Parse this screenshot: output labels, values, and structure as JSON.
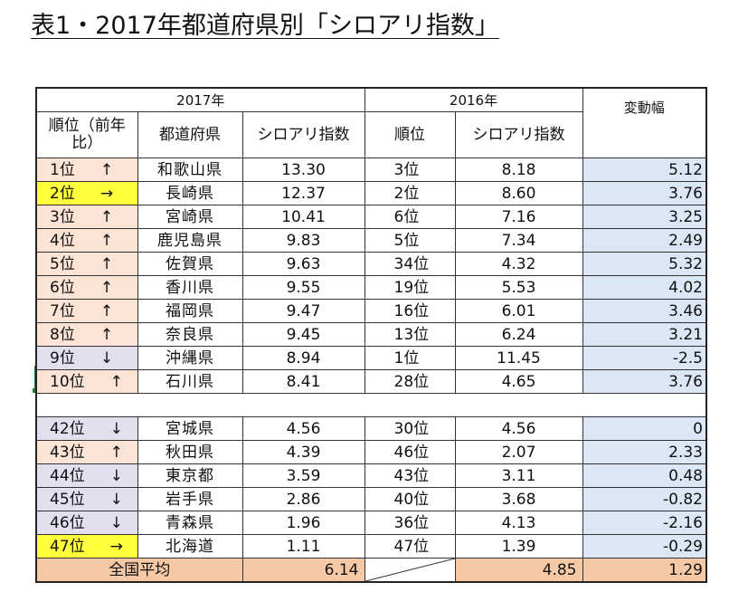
{
  "title": "表1・2017年都道府県別「シロアリ指数」",
  "headers": {
    "year_2017": "2017年",
    "year_2016": "2016年",
    "rank_prev": "順位（前年比）",
    "prefecture": "都道府県",
    "index_2017": "シロアリ指数",
    "rank_2016": "順位",
    "index_2016": "シロアリ指数",
    "change": "変動幅"
  },
  "top_rows": [
    {
      "rank": "1位",
      "trend": "↑",
      "pref": "和歌山県",
      "idx17": "13.30",
      "rank16": "3位",
      "idx16": "8.18",
      "change": "5.12",
      "color": "#fbe4d5"
    },
    {
      "rank": "2位",
      "trend": "→",
      "pref": "長崎県",
      "idx17": "12.37",
      "rank16": "2位",
      "idx16": "8.60",
      "change": "3.76",
      "color": "#ffff3b"
    },
    {
      "rank": "3位",
      "trend": "↑",
      "pref": "宮崎県",
      "idx17": "10.41",
      "rank16": "6位",
      "idx16": "7.16",
      "change": "3.25",
      "color": "#fbe4d5"
    },
    {
      "rank": "4位",
      "trend": "↑",
      "pref": "鹿児島県",
      "idx17": "9.83",
      "rank16": "5位",
      "idx16": "7.34",
      "change": "2.49",
      "color": "#fbe4d5"
    },
    {
      "rank": "5位",
      "trend": "↑",
      "pref": "佐賀県",
      "idx17": "9.63",
      "rank16": "34位",
      "idx16": "4.32",
      "change": "5.32",
      "color": "#fbe4d5"
    },
    {
      "rank": "6位",
      "trend": "↑",
      "pref": "香川県",
      "idx17": "9.55",
      "rank16": "19位",
      "idx16": "5.53",
      "change": "4.02",
      "color": "#fbe4d5"
    },
    {
      "rank": "7位",
      "trend": "↑",
      "pref": "福岡県",
      "idx17": "9.47",
      "rank16": "16位",
      "idx16": "6.01",
      "change": "3.46",
      "color": "#fbe4d5"
    },
    {
      "rank": "8位",
      "trend": "↑",
      "pref": "奈良県",
      "idx17": "9.45",
      "rank16": "13位",
      "idx16": "6.24",
      "change": "3.21",
      "color": "#fbe4d5"
    },
    {
      "rank": "9位",
      "trend": "↓",
      "pref": "沖縄県",
      "idx17": "8.94",
      "rank16": "1位",
      "idx16": "11.45",
      "change": "-2.5",
      "color": "#e2dfef"
    },
    {
      "rank": "10位",
      "trend": "↑",
      "pref": "石川県",
      "idx17": "8.41",
      "rank16": "28位",
      "idx16": "4.65",
      "change": "3.76",
      "color": "#fbe4d5"
    }
  ],
  "bottom_rows": [
    {
      "rank": "42位",
      "trend": "↓",
      "pref": "宮城県",
      "idx17": "4.56",
      "rank16": "30位",
      "idx16": "4.56",
      "change": "0",
      "color": "#e2dfef"
    },
    {
      "rank": "43位",
      "trend": "↑",
      "pref": "秋田県",
      "idx17": "4.39",
      "rank16": "46位",
      "idx16": "2.07",
      "change": "2.33",
      "color": "#fbe4d5"
    },
    {
      "rank": "44位",
      "trend": "↓",
      "pref": "東京都",
      "idx17": "3.59",
      "rank16": "43位",
      "idx16": "3.11",
      "change": "0.48",
      "color": "#e2dfef"
    },
    {
      "rank": "45位",
      "trend": "↓",
      "pref": "岩手県",
      "idx17": "2.86",
      "rank16": "40位",
      "idx16": "3.68",
      "change": "-0.82",
      "color": "#e2dfef"
    },
    {
      "rank": "46位",
      "trend": "↓",
      "pref": "青森県",
      "idx17": "1.96",
      "rank16": "36位",
      "idx16": "4.13",
      "change": "-2.16",
      "color": "#e2dfef"
    },
    {
      "rank": "47位",
      "trend": "→",
      "pref": "北海道",
      "idx17": "1.11",
      "rank16": "47位",
      "idx16": "1.39",
      "change": "-0.29",
      "color": "#ffff3b"
    }
  ],
  "average": {
    "label": "全国平均",
    "idx17": "6.14",
    "idx16": "4.85",
    "change": "1.29"
  }
}
